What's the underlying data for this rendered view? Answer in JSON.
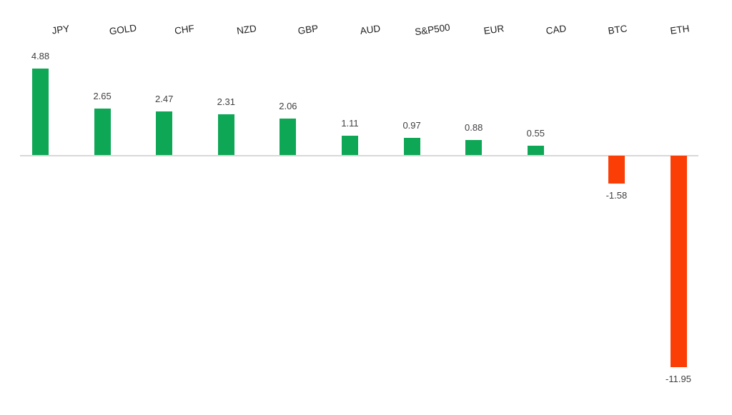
{
  "chart_data": {
    "type": "bar",
    "title": "",
    "xlabel": "",
    "ylabel": "",
    "categories": [
      "JPY",
      "GOLD",
      "CHF",
      "NZD",
      "GBP",
      "AUD",
      "S&P500",
      "EUR",
      "CAD",
      "BTC",
      "ETH"
    ],
    "values": [
      4.88,
      2.65,
      2.47,
      2.31,
      2.06,
      1.11,
      0.97,
      0.88,
      0.55,
      -1.58,
      -11.95
    ],
    "value_labels": [
      "4.88",
      "2.65",
      "2.47",
      "2.31",
      "2.06",
      "1.11",
      "0.97",
      "0.88",
      "0.55",
      "-1.58",
      "-11.95"
    ],
    "ylim": [
      -14,
      6.5
    ],
    "grid": false,
    "legend": "none",
    "data_labels": true,
    "category_labels_position": "top",
    "colors": {
      "positive": "#0ea756",
      "negative": "#fb3e05",
      "axis_line": "#d8d8d8",
      "category_label": "#1f1f1f",
      "value_label": "#404040",
      "background": "#ffffff"
    }
  }
}
